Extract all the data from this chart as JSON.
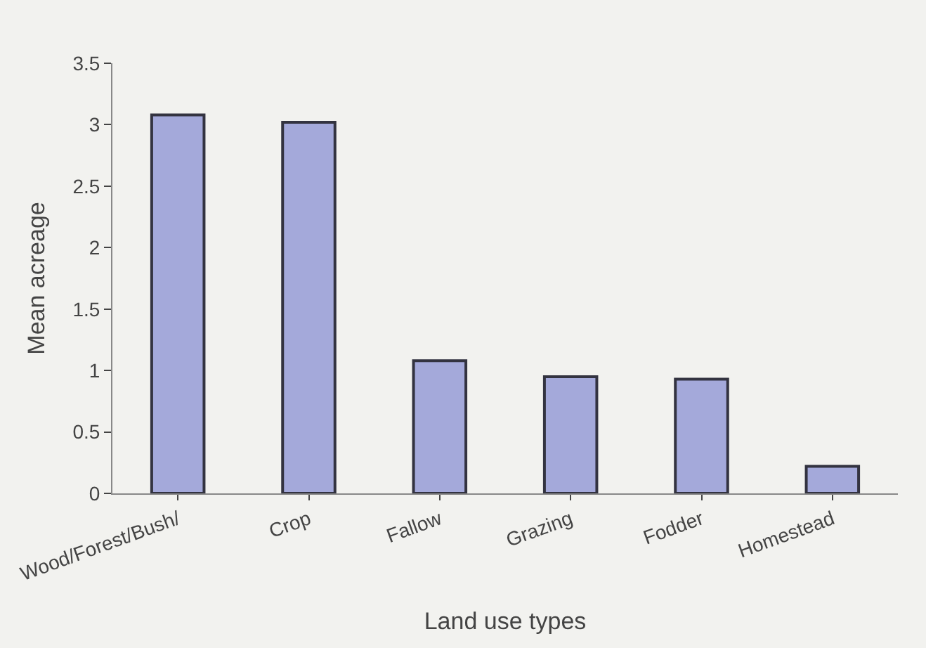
{
  "chart_data": {
    "type": "bar",
    "xlabel": "Land use types",
    "ylabel": "Mean acreage",
    "categories": [
      "Wood/Forest/Bush/",
      "Crop",
      "Fallow",
      "Grazing",
      "Fodder",
      "Homestead"
    ],
    "values": [
      3.08,
      3.02,
      1.08,
      0.95,
      0.93,
      0.22
    ],
    "color": "#a4a9da",
    "ylim": [
      0,
      3.5
    ],
    "yticks": [
      0,
      0.5,
      1,
      1.5,
      2,
      2.5,
      3,
      3.5
    ],
    "grid": false
  }
}
